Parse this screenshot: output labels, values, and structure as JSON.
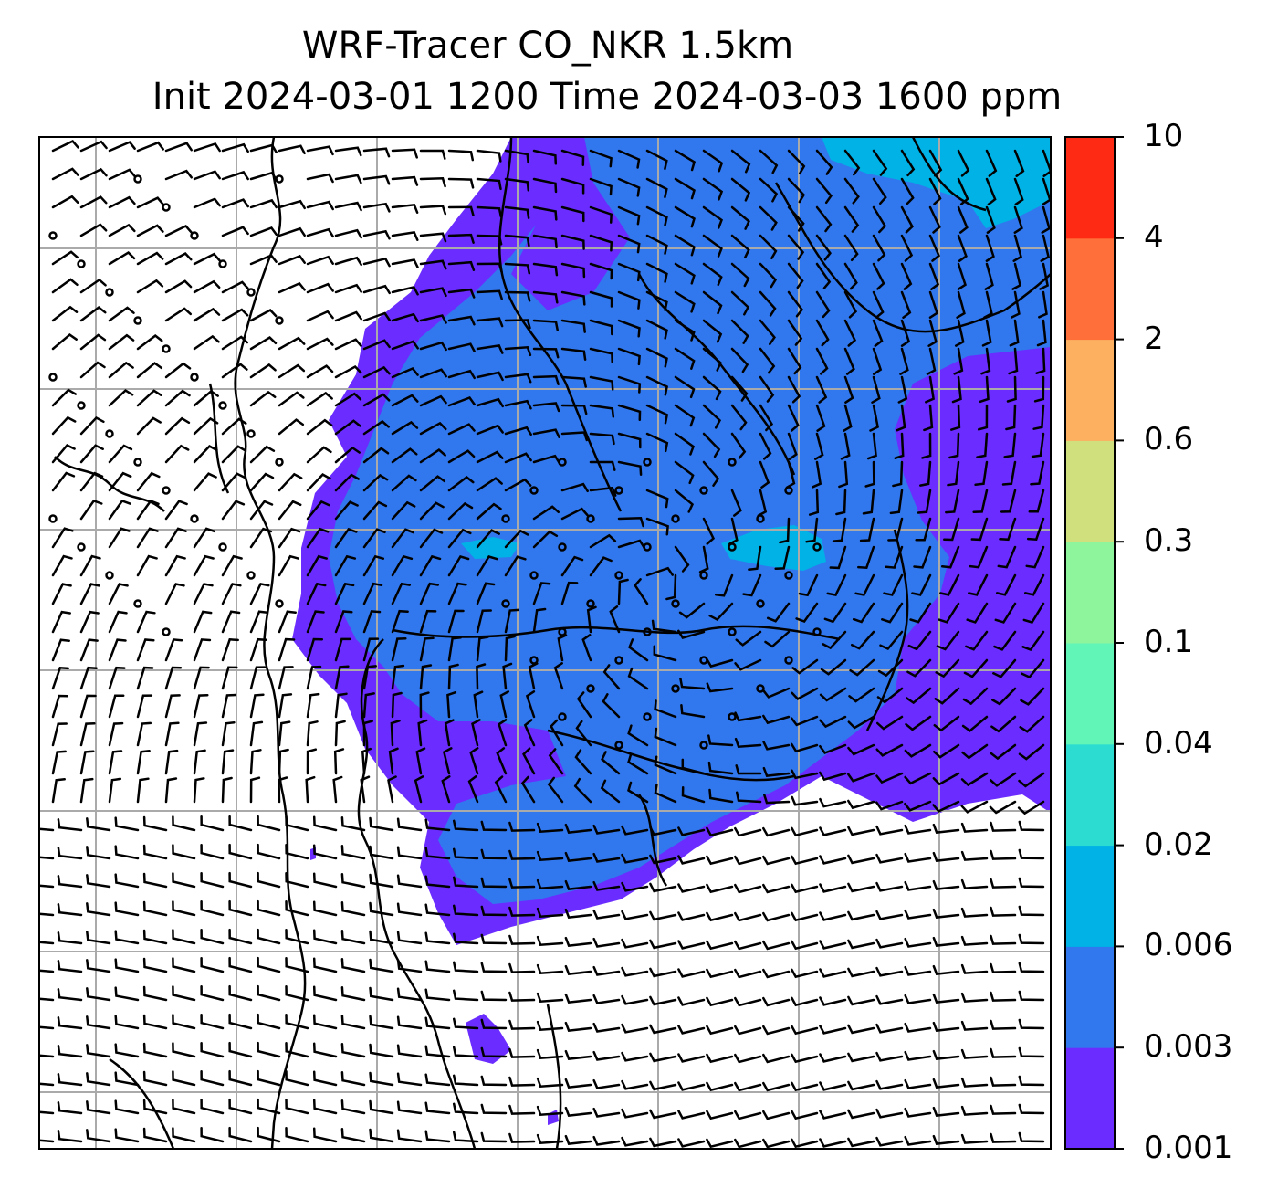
{
  "title": {
    "line1": "WRF-Tracer CO_NKR 1.5km",
    "line2": "Init 2024-03-01 1200 Time 2024-03-03 1600 ppm"
  },
  "colorbar": {
    "levels": [
      "0.001",
      "0.003",
      "0.006",
      "0.02",
      "0.04",
      "0.1",
      "0.3",
      "0.6",
      "2",
      "4",
      "10"
    ],
    "colors": [
      "#6a2cff",
      "#3178ee",
      "#00b2e6",
      "#2cdcd0",
      "#62f5b8",
      "#8ef59c",
      "#d0e07c",
      "#fdb060",
      "#ff6f39",
      "#ff2a14"
    ]
  },
  "map": {
    "grid": "on",
    "field_colors": {
      "outer_plume": "#6a2cff",
      "inner_plume": "#3178ee",
      "hotspot": "#00b2e6"
    }
  }
}
